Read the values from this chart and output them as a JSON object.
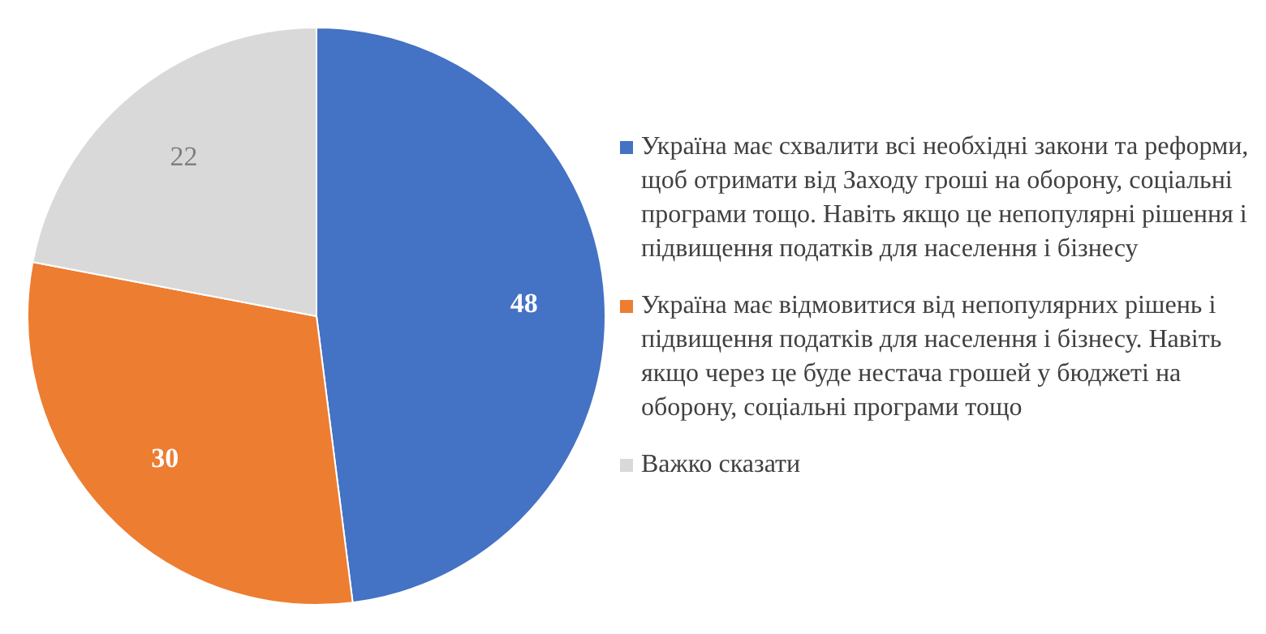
{
  "chart_data": {
    "type": "pie",
    "categories": [
      "Україна має схвалити всі необхідні закони та реформи, щоб отримати від Заходу гроші на оборону, соціальні програми тощо. Навіть якщо це непопулярні рішення і підвищення податків для населення і бізнесу",
      "Україна має відмовитися від непопулярних рішень і підвищення податків для населення і бізнесу. Навіть якщо через це буде нестача грошей у бюджеті на оборону, соціальні програми тощо",
      "Важко сказати"
    ],
    "values": [
      48,
      30,
      22
    ],
    "colors": [
      "#4472c4",
      "#ed7d31",
      "#d9d9d9"
    ],
    "data_labels": true,
    "legend": "right"
  }
}
